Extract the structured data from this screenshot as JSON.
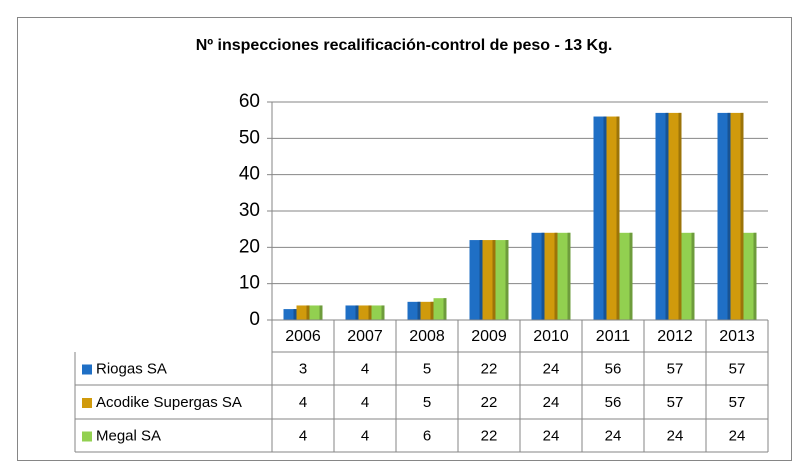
{
  "chart_data": {
    "type": "bar",
    "title": "Nº inspecciones recalificación-control de peso - 13 Kg.",
    "categories": [
      "2006",
      "2007",
      "2008",
      "2009",
      "2010",
      "2011",
      "2012",
      "2013"
    ],
    "series": [
      {
        "name": "Riogas SA",
        "color": "#1f6fc5",
        "values": [
          3,
          4,
          5,
          22,
          24,
          56,
          57,
          57
        ]
      },
      {
        "name": "Acodike Supergas SA",
        "color": "#d09a0c",
        "values": [
          4,
          4,
          5,
          22,
          24,
          56,
          57,
          57
        ]
      },
      {
        "name": "Megal SA",
        "color": "#92d050",
        "values": [
          4,
          4,
          6,
          22,
          24,
          24,
          24,
          24
        ]
      }
    ],
    "ylim": [
      0,
      60
    ],
    "yticks": [
      0,
      10,
      20,
      30,
      40,
      50,
      60
    ],
    "grid": true,
    "data_table": true
  }
}
